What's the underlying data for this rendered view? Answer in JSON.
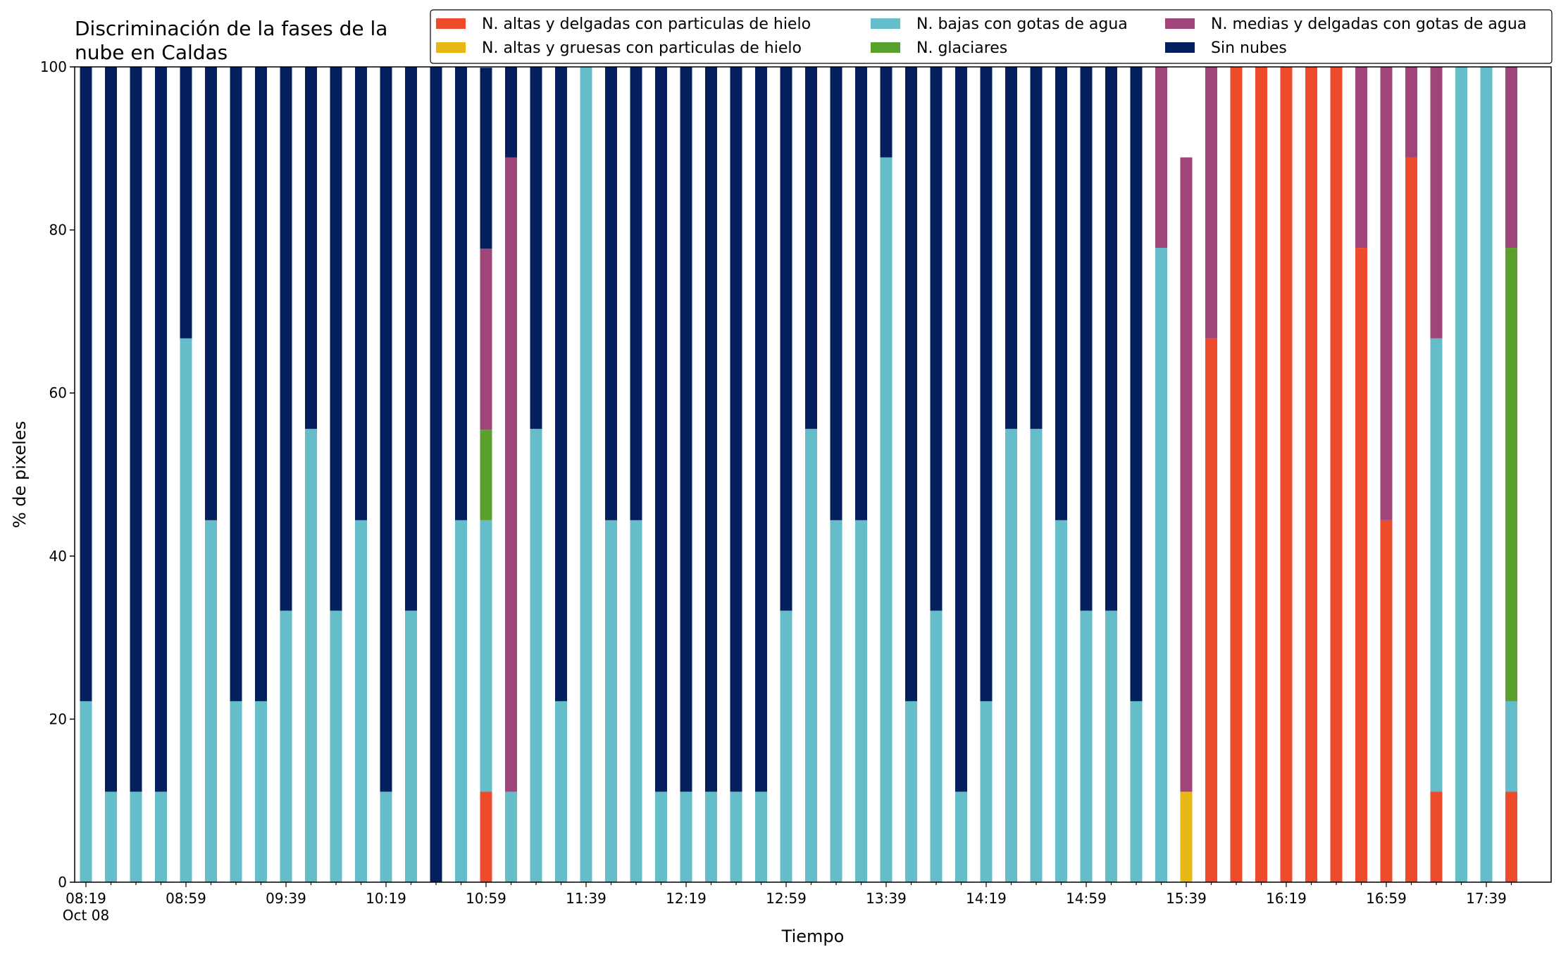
{
  "chart_data": {
    "type": "bar",
    "stacked": true,
    "title": "Discriminación de la fases de la nube en Caldas",
    "title_lines": [
      "Discriminación de la fases de la",
      "nube en Caldas"
    ],
    "xlabel": "Tiempo",
    "ylabel": "% de pixeles",
    "ylim": [
      0,
      100
    ],
    "yticks": [
      0,
      20,
      40,
      60,
      80,
      100
    ],
    "xtick_labels": [
      "08:19",
      "08:59",
      "09:39",
      "10:19",
      "10:59",
      "11:39",
      "12:19",
      "12:59",
      "13:39",
      "14:19",
      "14:59",
      "15:39",
      "16:19",
      "16:59",
      "17:39"
    ],
    "x_date_label": "Oct 08",
    "grid": false,
    "legend_position": "top-right",
    "categories": [
      "08:19",
      "08:29",
      "08:39",
      "08:49",
      "08:59",
      "09:09",
      "09:19",
      "09:29",
      "09:39",
      "09:49",
      "09:59",
      "10:09",
      "10:19",
      "10:29",
      "10:39",
      "10:49",
      "10:59",
      "11:09",
      "11:19",
      "11:29",
      "11:39",
      "11:49",
      "11:59",
      "12:09",
      "12:19",
      "12:29",
      "12:39",
      "12:49",
      "12:59",
      "13:09",
      "13:19",
      "13:29",
      "13:39",
      "13:49",
      "13:59",
      "14:09",
      "14:19",
      "14:29",
      "14:39",
      "14:49",
      "14:59",
      "15:09",
      "15:19",
      "15:29",
      "15:39",
      "15:49",
      "15:59",
      "16:09",
      "16:19",
      "16:29",
      "16:39",
      "16:49",
      "16:59",
      "17:09",
      "17:19",
      "17:29",
      "17:39",
      "17:49"
    ],
    "present": [
      true,
      true,
      true,
      true,
      true,
      true,
      true,
      true,
      true,
      true,
      true,
      true,
      true,
      true,
      true,
      true,
      true,
      true,
      true,
      true,
      true,
      true,
      true,
      true,
      true,
      true,
      true,
      true,
      true,
      true,
      true,
      true,
      true,
      true,
      true,
      true,
      true,
      true,
      true,
      true,
      true,
      true,
      true,
      true,
      true,
      true,
      true,
      true,
      true,
      true,
      true,
      true,
      true,
      true,
      true,
      true,
      true,
      true
    ],
    "series": [
      {
        "name": "N. altas y delgadas con particulas de hielo",
        "color": "#ee4a2c",
        "values": [
          0,
          0,
          0,
          0,
          0,
          0,
          0,
          0,
          0,
          0,
          0,
          0,
          0,
          0,
          0,
          0,
          11.1,
          0,
          0,
          0,
          0,
          0,
          0,
          0,
          0,
          0,
          0,
          0,
          0,
          0,
          0,
          0,
          0,
          0,
          0,
          0,
          0,
          0,
          0,
          0,
          0,
          0,
          0,
          0,
          0,
          66.7,
          100,
          100,
          100,
          100,
          100,
          77.8,
          44.4,
          88.9,
          11.1,
          0,
          0,
          11.1
        ]
      },
      {
        "name": "N. altas y gruesas con particulas de hielo",
        "color": "#e6b816",
        "values": [
          0,
          0,
          0,
          0,
          0,
          0,
          0,
          0,
          0,
          0,
          0,
          0,
          0,
          0,
          0,
          0,
          0,
          0,
          0,
          0,
          0,
          0,
          0,
          0,
          0,
          0,
          0,
          0,
          0,
          0,
          0,
          0,
          0,
          0,
          0,
          0,
          0,
          0,
          0,
          0,
          0,
          0,
          0,
          0,
          11.1,
          0,
          0,
          0,
          0,
          0,
          0,
          0,
          0,
          0,
          0,
          0,
          0,
          0
        ]
      },
      {
        "name": "N. bajas con gotas de agua",
        "color": "#65bdca",
        "values": [
          22.2,
          11.1,
          11.1,
          11.1,
          66.7,
          44.4,
          22.2,
          22.2,
          33.3,
          55.6,
          33.3,
          44.4,
          11.1,
          33.3,
          0,
          44.4,
          33.3,
          11.1,
          55.6,
          22.2,
          100,
          44.4,
          44.4,
          11.1,
          11.1,
          11.1,
          11.1,
          11.1,
          33.3,
          55.6,
          44.4,
          44.4,
          88.9,
          22.2,
          33.3,
          11.1,
          22.2,
          55.6,
          55.6,
          44.4,
          33.3,
          33.3,
          22.2,
          77.8,
          0,
          0,
          0,
          0,
          0,
          0,
          0,
          0,
          0,
          0,
          55.6,
          100,
          100,
          11.1
        ]
      },
      {
        "name": "N. glaciares",
        "color": "#5aa02c",
        "values": [
          0,
          0,
          0,
          0,
          0,
          0,
          0,
          0,
          0,
          0,
          0,
          0,
          0,
          0,
          0,
          0,
          11.1,
          0,
          0,
          0,
          0,
          0,
          0,
          0,
          0,
          0,
          0,
          0,
          0,
          0,
          0,
          0,
          0,
          0,
          0,
          0,
          0,
          0,
          0,
          0,
          0,
          0,
          0,
          0,
          0,
          0,
          0,
          0,
          0,
          0,
          0,
          0,
          0,
          0,
          0,
          0,
          0,
          55.6
        ]
      },
      {
        "name": "N. medias y delgadas con gotas de agua",
        "color": "#a0457a",
        "values": [
          0,
          0,
          0,
          0,
          0,
          0,
          0,
          0,
          0,
          0,
          0,
          0,
          0,
          0,
          0,
          0,
          22.2,
          77.8,
          0,
          0,
          0,
          0,
          0,
          0,
          0,
          0,
          0,
          0,
          0,
          0,
          0,
          0,
          0,
          0,
          0,
          0,
          0,
          0,
          0,
          0,
          0,
          0,
          0,
          22.2,
          77.8,
          33.3,
          0,
          0,
          0,
          0,
          0,
          22.2,
          55.6,
          11.1,
          33.3,
          0,
          0,
          22.2
        ]
      },
      {
        "name": "Sin nubes",
        "color": "#03205c",
        "values": [
          77.8,
          88.9,
          88.9,
          88.9,
          33.3,
          55.6,
          77.8,
          77.8,
          66.7,
          44.4,
          66.7,
          55.6,
          88.9,
          66.7,
          100,
          55.6,
          22.2,
          11.1,
          44.4,
          77.8,
          0,
          55.6,
          55.6,
          88.9,
          88.9,
          88.9,
          88.9,
          88.9,
          66.7,
          44.4,
          55.6,
          55.6,
          11.1,
          77.8,
          66.7,
          88.9,
          77.8,
          44.4,
          44.4,
          55.6,
          66.7,
          66.7,
          77.8,
          0,
          0,
          0,
          0,
          0,
          0,
          0,
          0,
          0,
          0,
          0,
          0,
          0,
          0,
          0
        ]
      }
    ]
  }
}
